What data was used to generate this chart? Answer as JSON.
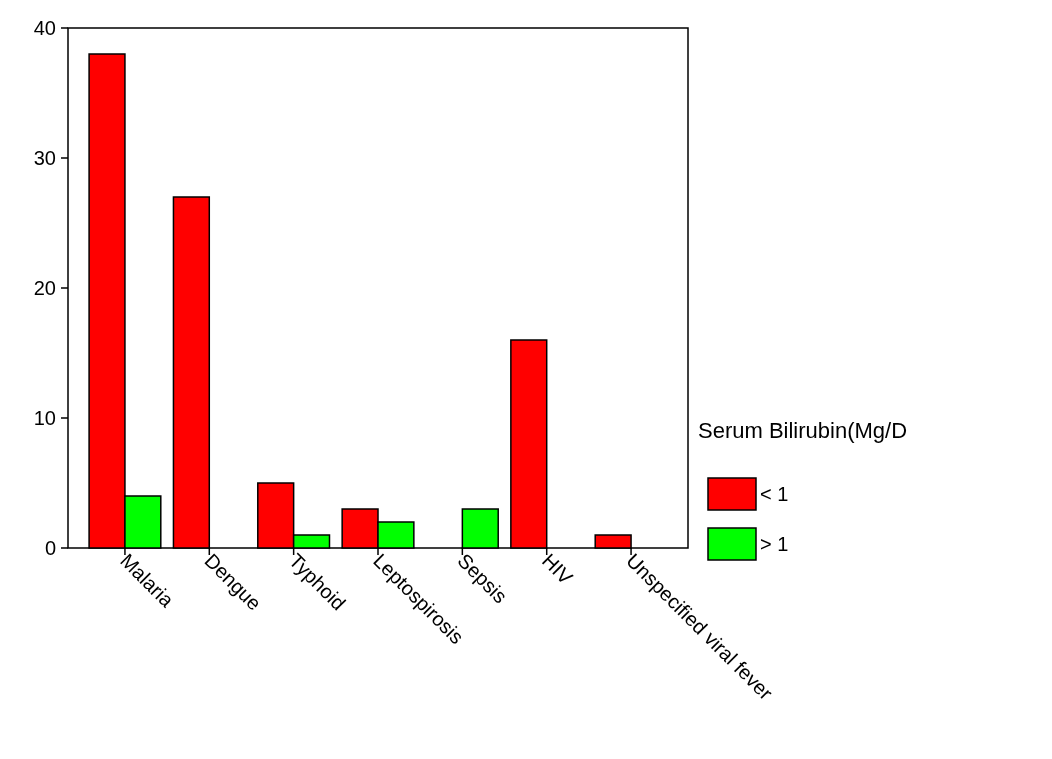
{
  "chart_data": {
    "type": "bar",
    "categories": [
      "Malaria",
      "Dengue",
      "Typhoid",
      "Leptospirosis",
      "Sepsis",
      "HIV",
      "Unspecified viral fever"
    ],
    "series": [
      {
        "name": "< 1",
        "color": "#ff0000",
        "values": [
          38,
          27,
          5,
          3,
          0,
          16,
          1
        ]
      },
      {
        "name": "> 1",
        "color": "#00ff00",
        "values": [
          4,
          0,
          1,
          2,
          3,
          0,
          0
        ]
      }
    ],
    "legend_title": "Serum Bilirubin(Mg/D",
    "legend": "right",
    "ylim": [
      0,
      40
    ],
    "yticks": [
      0,
      10,
      20,
      30,
      40
    ],
    "grid": false
  }
}
